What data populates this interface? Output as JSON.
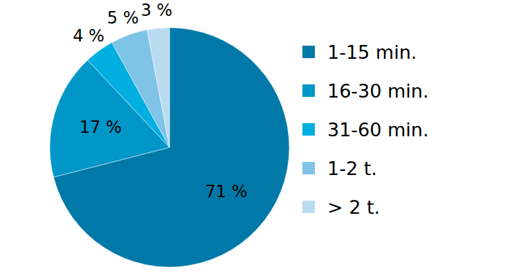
{
  "chart_data": {
    "type": "pie",
    "categories": [
      "1-15 min.",
      "16-30 min.",
      "31-60 min.",
      "1-2 t.",
      "> 2 t."
    ],
    "values": [
      71,
      17,
      4,
      5,
      3
    ],
    "value_labels": [
      "71 %",
      "17 %",
      "4 %",
      "5 %",
      "3 %"
    ],
    "colors": [
      "#0079a8",
      "#0096c8",
      "#00afe0",
      "#7fc3e6",
      "#b9dcf1"
    ],
    "data_labels": true,
    "legend": "right"
  }
}
